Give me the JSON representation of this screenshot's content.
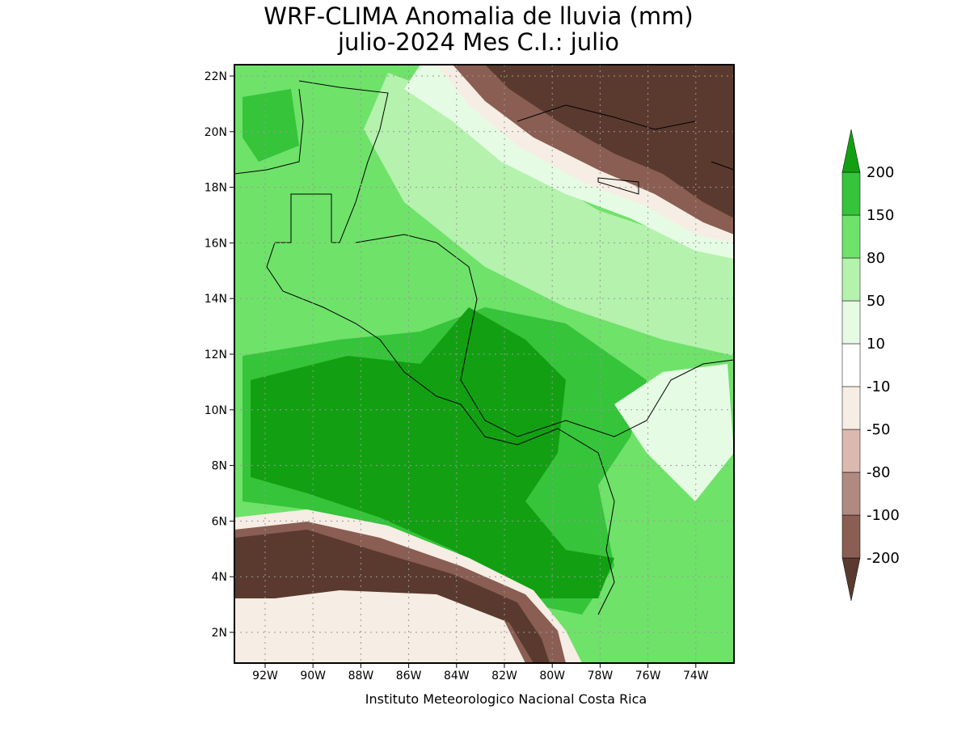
{
  "title": "WRF-CLIMA Anomalia de lluvia (mm)",
  "subtitle": "julio-2024 Mes C.I.: julio",
  "footer": "Instituto Meteorologico Nacional Costa Rica",
  "map": {
    "lat_ticks": [
      "2N",
      "4N",
      "6N",
      "8N",
      "10N",
      "12N",
      "14N",
      "16N",
      "18N",
      "20N",
      "22N"
    ],
    "lon_ticks": [
      "92W",
      "90W",
      "88W",
      "86W",
      "84W",
      "82W",
      "80W",
      "78W",
      "76W",
      "74W"
    ]
  },
  "colorbar": {
    "levels": [
      -200,
      -100,
      -80,
      -50,
      -10,
      10,
      50,
      80,
      150,
      200
    ],
    "colors": [
      "#5a3a2e",
      "#8a5e52",
      "#b08a80",
      "#dbb9ae",
      "#f6ede4",
      "#ffffff",
      "#e6fbe4",
      "#b4f2ad",
      "#6fe26a",
      "#35c43a",
      "#12a012"
    ]
  }
}
